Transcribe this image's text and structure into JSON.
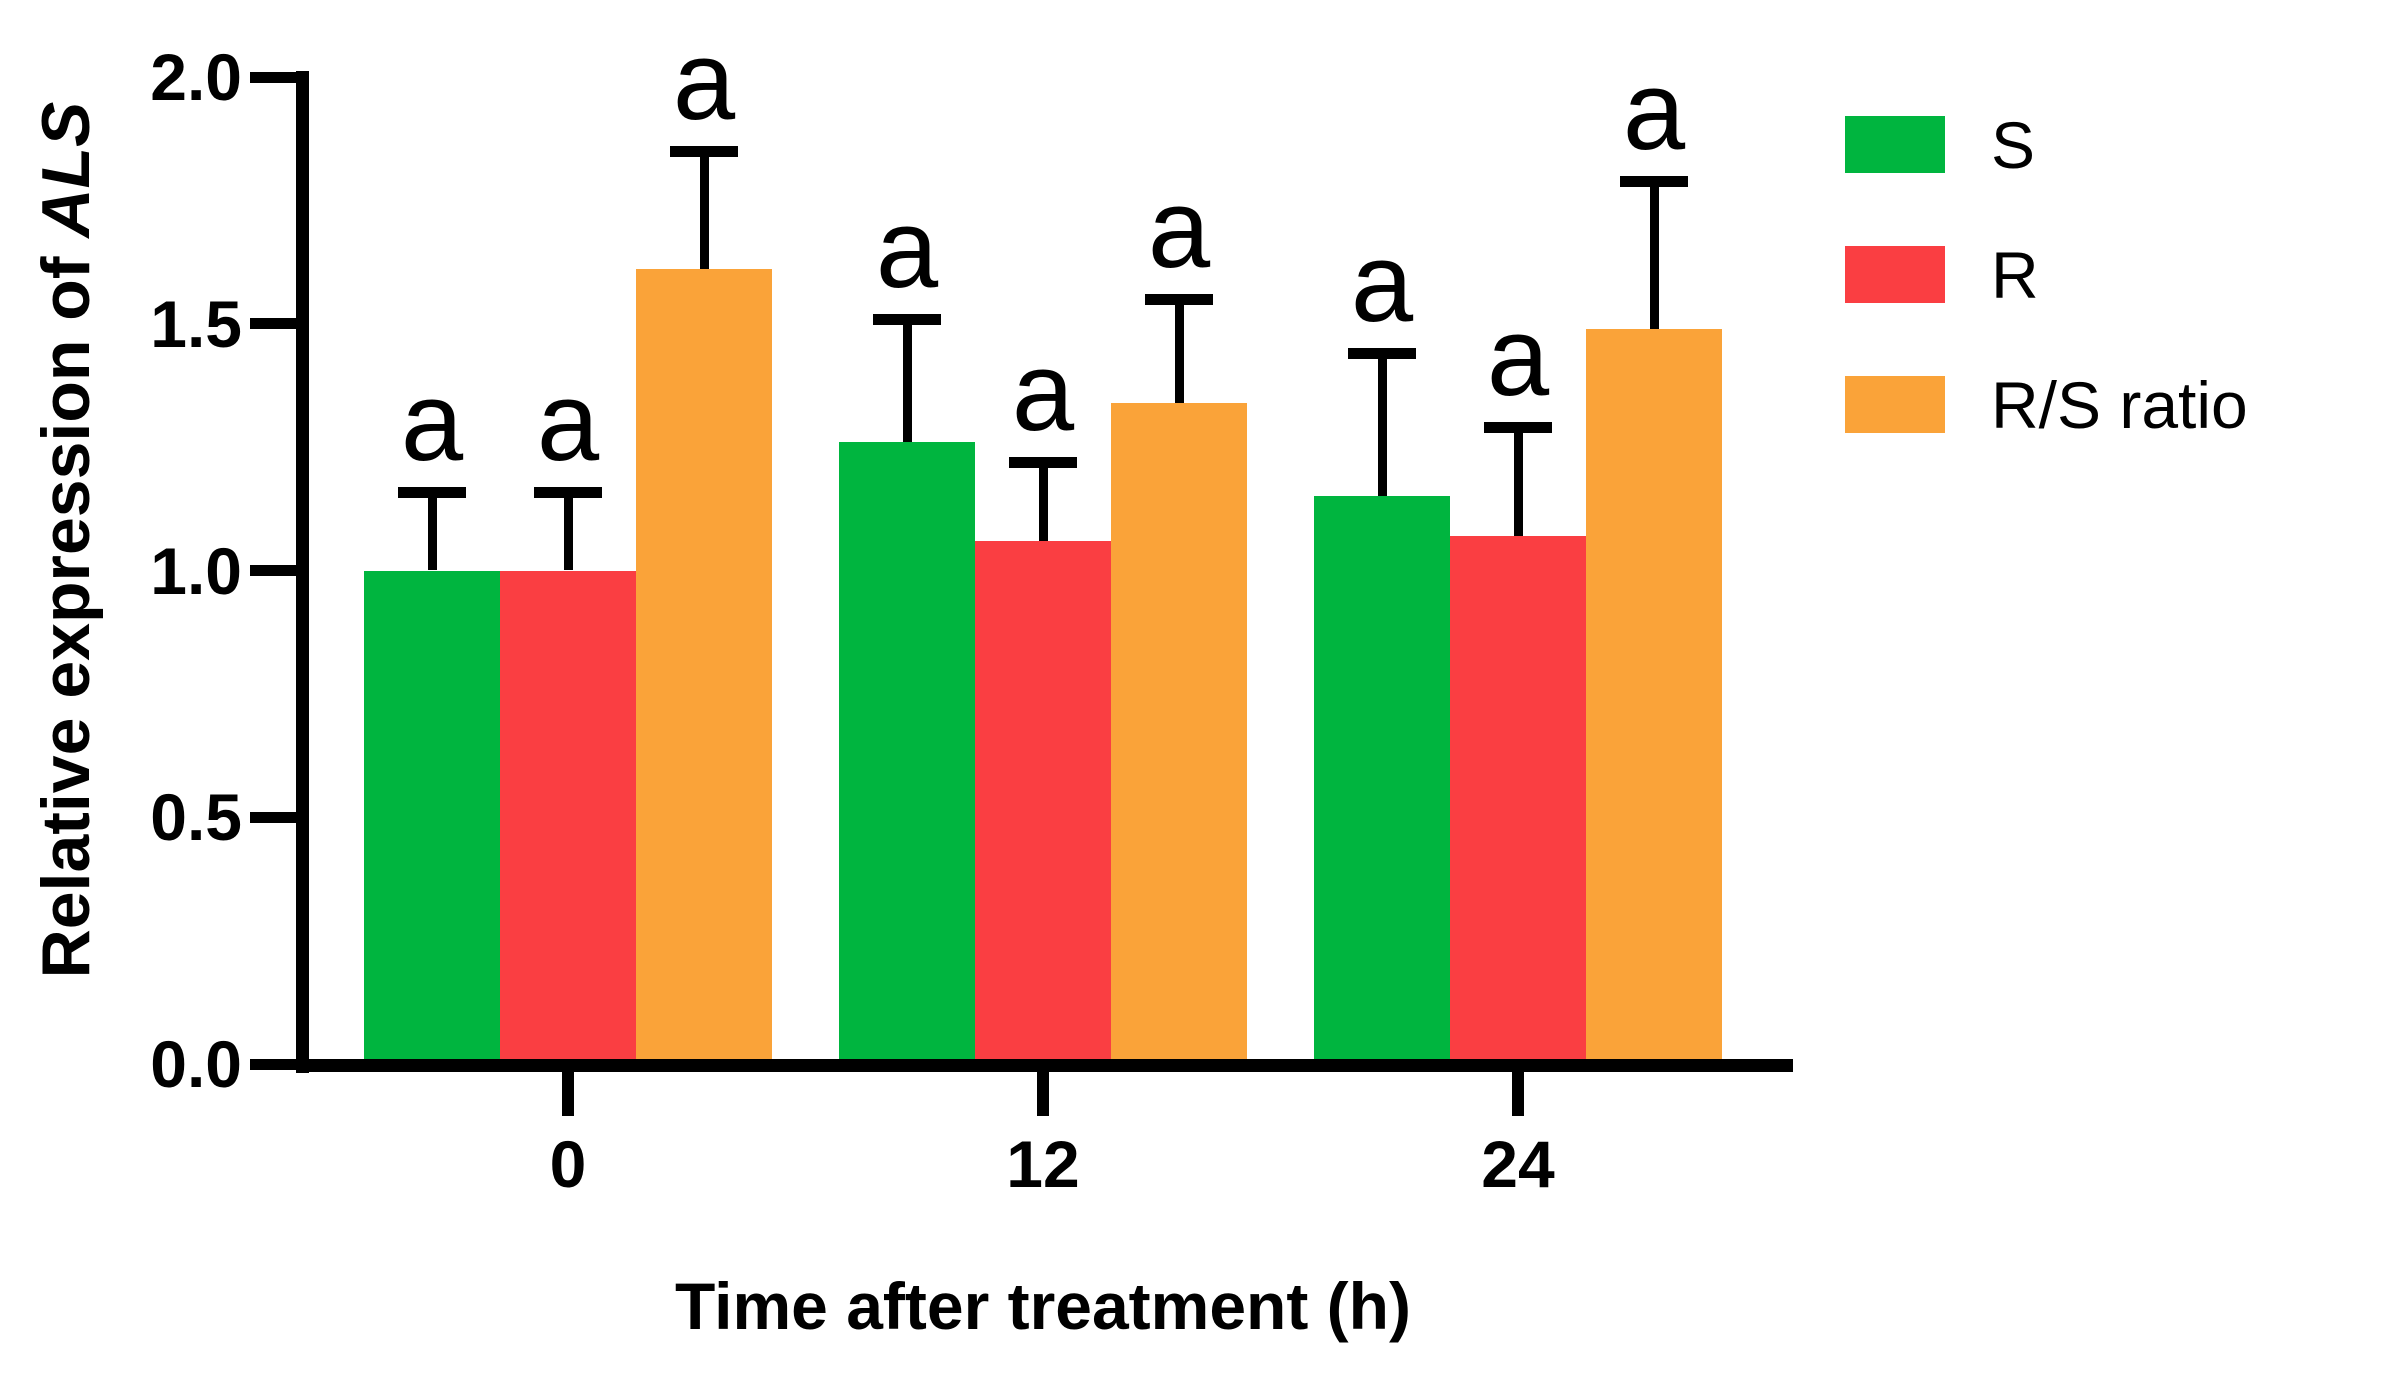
{
  "chart_data": {
    "type": "bar",
    "title": "",
    "xlabel": "Time after treatment (h)",
    "ylabel": {
      "prefix": "Relative expression of ",
      "italic": "ALS"
    },
    "categories": [
      "0",
      "12",
      "24"
    ],
    "yticks": [
      "0.0",
      "0.5",
      "1.0",
      "1.5",
      "2.0"
    ],
    "ylim": [
      0.0,
      2.0
    ],
    "grid": false,
    "legend_position": "right",
    "axis_color": "#000000",
    "error_bar_color": "#000000",
    "series": [
      {
        "name": "S",
        "color": "#00b53f",
        "values": [
          1.0,
          1.26,
          1.15
        ],
        "errors": [
          0.16,
          0.25,
          0.29
        ],
        "annotations": [
          "a",
          "a",
          "a"
        ]
      },
      {
        "name": "R",
        "color": "#fa3e42",
        "values": [
          1.0,
          1.06,
          1.07
        ],
        "errors": [
          0.16,
          0.16,
          0.22
        ],
        "annotations": [
          "a",
          "a",
          "a"
        ]
      },
      {
        "name": "R/S ratio",
        "color": "#faa339",
        "values": [
          1.61,
          1.34,
          1.49
        ],
        "errors": [
          0.24,
          0.21,
          0.3
        ],
        "annotations": [
          "a",
          "a",
          "a"
        ]
      }
    ]
  }
}
